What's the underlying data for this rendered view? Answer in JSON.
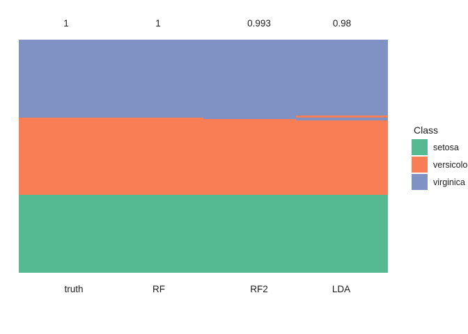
{
  "chart_data": {
    "type": "bar",
    "variant": "stacked-class-membership-comparison",
    "title": "",
    "categories": [
      "truth",
      "RF",
      "RF2",
      "LDA"
    ],
    "accuracy_labels": [
      "1",
      "1",
      "0.993",
      "0.98"
    ],
    "total_samples": 150,
    "classes": {
      "setosa": "#55B992",
      "versicolor": "#FA7E55",
      "virginica": "#8091C3"
    },
    "columns": [
      {
        "name": "truth",
        "accuracy_label": "1",
        "segments": [
          {
            "class": "virginica",
            "count": 50
          },
          {
            "class": "versicolor",
            "count": 50
          },
          {
            "class": "setosa",
            "count": 50
          }
        ]
      },
      {
        "name": "RF",
        "accuracy_label": "1",
        "segments": [
          {
            "class": "virginica",
            "count": 50
          },
          {
            "class": "versicolor",
            "count": 50
          },
          {
            "class": "setosa",
            "count": 50
          }
        ]
      },
      {
        "name": "RF2",
        "accuracy_label": "0.993",
        "segments": [
          {
            "class": "virginica",
            "count": 51
          },
          {
            "class": "versicolor",
            "count": 49
          },
          {
            "class": "setosa",
            "count": 50
          }
        ]
      },
      {
        "name": "LDA",
        "accuracy_label": "0.98",
        "segments": [
          {
            "class": "virginica",
            "count": 49
          },
          {
            "class": "versicolor",
            "count": 1
          },
          {
            "class": "virginica",
            "count": 2
          },
          {
            "class": "versicolor",
            "count": 48
          },
          {
            "class": "setosa",
            "count": 50
          }
        ]
      }
    ],
    "legend": {
      "title": "Class",
      "position": "right",
      "entries": [
        {
          "label": "setosa",
          "color": "#55B992"
        },
        {
          "label": "versicolor",
          "color": "#FA7E55"
        },
        {
          "label": "virginica",
          "color": "#8091C3"
        }
      ]
    },
    "layout": {
      "gridlines": false,
      "axis_lines": false,
      "x_tick_labels": [
        "truth",
        "RF",
        "RF2",
        "LDA"
      ]
    }
  }
}
